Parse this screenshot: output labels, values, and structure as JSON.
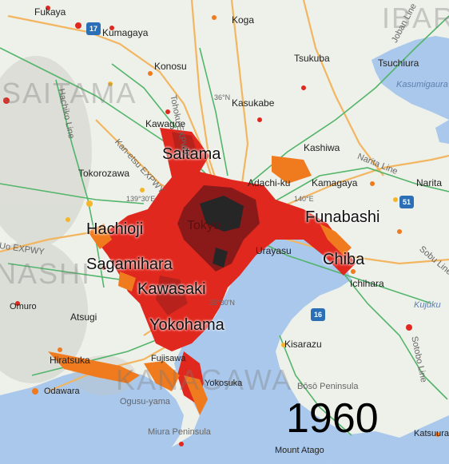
{
  "year": "1960",
  "prefectures": [
    "SAITAMA",
    "NASHI",
    "KANAGAWA",
    "IBAR"
  ],
  "major_cities": [
    "Saitama",
    "Hachioji",
    "Sagamihara",
    "Kawasaki",
    "Yokohama",
    "Funabashi",
    "Chiba",
    "Tokyo"
  ],
  "towns": [
    "Fukaya",
    "Kumagaya",
    "Koga",
    "Konosu",
    "Tsukuba",
    "Tsuchiura",
    "Kasukabe",
    "Kawagoe",
    "Kashiwa",
    "Tokorozawa",
    "Adachi-ku",
    "Kamagaya",
    "Narita",
    "Urayasu",
    "Ichihara",
    "Atsugi",
    "Hiratsuka",
    "Fujisawa",
    "Kisarazu",
    "Yokosuka",
    "Odawara",
    "Ogusu-yama",
    "Miura Peninsula",
    "Bōsō Peninsula",
    "Mount Atago",
    "Katsuura",
    "Omuro"
  ],
  "roads": [
    "Tohoku EXPWY",
    "Kan-etsu EXPWY",
    "Hachiko Line",
    "Narita Line",
    "Joban Line",
    "Sobu Line",
    "Sotobo Line",
    "Uo EXPWY"
  ],
  "water": [
    "Kasumigaura",
    "Kujūku"
  ],
  "route_shields": [
    "17",
    "51",
    "16"
  ],
  "coordinates": [
    "36°N",
    "139°30'E",
    "140°E",
    "35°30'N"
  ],
  "colors": {
    "land": "#eef0ea",
    "sea": "#a9c8ec",
    "expressway": "#f2b661",
    "railway": "#52b56a",
    "urban_highest": "#262626",
    "urban_high": "#8a1a1a",
    "urban_mid": "#e0281e",
    "urban_low": "#f07a1e",
    "urban_lowest": "#f5b52a"
  }
}
